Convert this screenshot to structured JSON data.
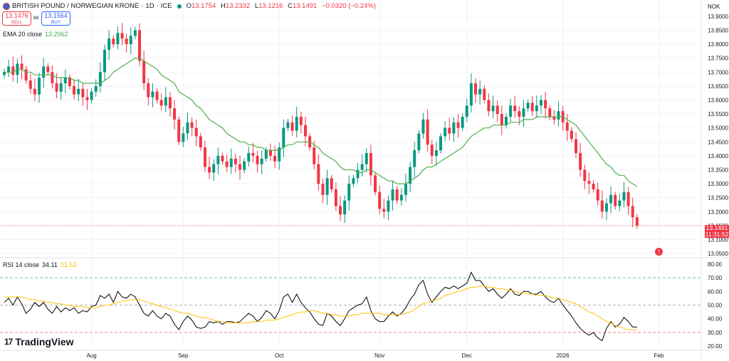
{
  "header": {
    "symbol": "BRITISH POUND / NORWEGIAN KRONE",
    "interval": "1D",
    "exchange": "ICE",
    "open_label": "O",
    "open": "13.1754",
    "high_label": "H",
    "high": "13.2332",
    "low_label": "L",
    "low": "13.1216",
    "close_label": "C",
    "close": "13.1491",
    "change": "−0.0320 (−0.24%)"
  },
  "trade": {
    "sell_price": "13.1476",
    "sell_label": "SELL",
    "spread": "88",
    "buy_price": "13.1564",
    "buy_label": "BUY"
  },
  "ema": {
    "label": "EMA 20 close",
    "value": "13.2962"
  },
  "rsi": {
    "label": "RSI 14 close",
    "value": "34.11",
    "ma_value": "31.53"
  },
  "currency": "NOK",
  "last_price": {
    "price": "13.1491",
    "countdown": "11:31:52"
  },
  "brand": "TradingView",
  "colors": {
    "up": "#089981",
    "down": "#f23645",
    "ema": "#4caf50",
    "rsi": "#000000",
    "rsi_ma": "#ffc107",
    "grid": "#f0f3fa"
  },
  "chart_data": [
    {
      "type": "candlestick",
      "y_ticks": [
        13.05,
        13.1,
        13.15,
        13.2,
        13.25,
        13.3,
        13.35,
        13.4,
        13.45,
        13.5,
        13.55,
        13.6,
        13.65,
        13.7,
        13.75,
        13.8,
        13.85,
        13.9
      ],
      "ylim": [
        13.04,
        13.92
      ],
      "x_ticks": [
        {
          "label": "Aug",
          "index": 20
        },
        {
          "label": "Sep",
          "index": 41
        },
        {
          "label": "Oct",
          "index": 63
        },
        {
          "label": "Nov",
          "index": 86
        },
        {
          "label": "Dec",
          "index": 106
        },
        {
          "label": "2026",
          "index": 128
        },
        {
          "label": "Feb",
          "index": 150
        }
      ],
      "close": [
        13.7,
        13.72,
        13.69,
        13.73,
        13.71,
        13.67,
        13.64,
        13.62,
        13.68,
        13.72,
        13.7,
        13.66,
        13.63,
        13.66,
        13.68,
        13.65,
        13.62,
        13.64,
        13.61,
        13.6,
        13.63,
        13.65,
        13.7,
        13.78,
        13.82,
        13.8,
        13.84,
        13.82,
        13.8,
        13.83,
        13.85,
        13.74,
        13.66,
        13.61,
        13.63,
        13.6,
        13.58,
        13.61,
        13.57,
        13.53,
        13.45,
        13.48,
        13.52,
        13.5,
        13.47,
        13.43,
        13.36,
        13.34,
        13.37,
        13.4,
        13.38,
        13.36,
        13.39,
        13.37,
        13.35,
        13.38,
        13.41,
        13.4,
        13.37,
        13.39,
        13.42,
        13.4,
        13.38,
        13.43,
        13.5,
        13.52,
        13.49,
        13.54,
        13.51,
        13.47,
        13.43,
        13.37,
        13.3,
        13.26,
        13.32,
        13.28,
        13.22,
        13.19,
        13.24,
        13.3,
        13.32,
        13.35,
        13.37,
        13.41,
        13.33,
        13.27,
        13.21,
        13.2,
        13.24,
        13.28,
        13.24,
        13.26,
        13.3,
        13.36,
        13.42,
        13.48,
        13.53,
        13.44,
        13.4,
        13.42,
        13.47,
        13.5,
        13.48,
        13.52,
        13.5,
        13.54,
        13.58,
        13.66,
        13.62,
        13.64,
        13.6,
        13.56,
        13.58,
        13.55,
        13.51,
        13.54,
        13.58,
        13.56,
        13.54,
        13.57,
        13.59,
        13.56,
        13.58,
        13.6,
        13.57,
        13.54,
        13.53,
        13.56,
        13.52,
        13.49,
        13.46,
        13.41,
        13.35,
        13.31,
        13.3,
        13.28,
        13.24,
        13.2,
        13.23,
        13.26,
        13.22,
        13.24,
        13.27,
        13.22,
        13.18,
        13.15
      ],
      "ema": [
        13.7,
        13.7,
        13.7,
        13.71,
        13.71,
        13.7,
        13.7,
        13.69,
        13.69,
        13.69,
        13.69,
        13.69,
        13.68,
        13.68,
        13.68,
        13.68,
        13.67,
        13.67,
        13.66,
        13.66,
        13.66,
        13.66,
        13.66,
        13.67,
        13.68,
        13.7,
        13.71,
        13.72,
        13.73,
        13.74,
        13.75,
        13.75,
        13.74,
        13.73,
        13.72,
        13.71,
        13.69,
        13.68,
        13.67,
        13.66,
        13.63,
        13.62,
        13.61,
        13.6,
        13.58,
        13.57,
        13.55,
        13.53,
        13.52,
        13.51,
        13.5,
        13.48,
        13.47,
        13.46,
        13.45,
        13.45,
        13.44,
        13.44,
        13.43,
        13.43,
        13.42,
        13.42,
        13.42,
        13.42,
        13.43,
        13.44,
        13.44,
        13.45,
        13.45,
        13.45,
        13.45,
        13.44,
        13.43,
        13.41,
        13.4,
        13.39,
        13.38,
        13.36,
        13.35,
        13.35,
        13.35,
        13.34,
        13.34,
        13.35,
        13.35,
        13.34,
        13.33,
        13.32,
        13.31,
        13.31,
        13.3,
        13.3,
        13.3,
        13.31,
        13.32,
        13.33,
        13.35,
        13.36,
        13.36,
        13.37,
        13.38,
        13.39,
        13.4,
        13.41,
        13.42,
        13.43,
        13.45,
        13.47,
        13.48,
        13.49,
        13.5,
        13.5,
        13.51,
        13.51,
        13.51,
        13.51,
        13.52,
        13.52,
        13.52,
        13.53,
        13.53,
        13.53,
        13.54,
        13.54,
        13.54,
        13.54,
        13.54,
        13.54,
        13.54,
        13.53,
        13.52,
        13.51,
        13.49,
        13.47,
        13.45,
        13.43,
        13.41,
        13.39,
        13.37,
        13.36,
        13.34,
        13.33,
        13.33,
        13.31,
        13.3,
        13.29
      ]
    },
    {
      "type": "line",
      "title": "RSI 14 close",
      "y_ticks": [
        20,
        30,
        40,
        50,
        60,
        70,
        80
      ],
      "ylim": [
        18,
        82
      ],
      "levels": [
        30,
        50,
        70
      ],
      "series": [
        {
          "name": "RSI",
          "values": [
            52,
            55,
            50,
            56,
            51,
            44,
            47,
            52,
            49,
            52,
            47,
            44,
            49,
            45,
            48,
            46,
            48,
            44,
            46,
            45,
            49,
            50,
            57,
            55,
            58,
            52,
            60,
            56,
            55,
            58,
            56,
            50,
            44,
            42,
            46,
            42,
            40,
            44,
            42,
            36,
            32,
            38,
            42,
            39,
            34,
            33,
            34,
            38,
            37,
            38,
            36,
            38,
            38,
            37,
            38,
            41,
            44,
            42,
            38,
            41,
            46,
            44,
            40,
            46,
            56,
            58,
            52,
            58,
            52,
            48,
            45,
            40,
            36,
            35,
            44,
            42,
            38,
            35,
            40,
            46,
            48,
            50,
            51,
            56,
            46,
            40,
            38,
            38,
            42,
            45,
            42,
            44,
            48,
            54,
            58,
            65,
            68,
            58,
            52,
            56,
            60,
            63,
            62,
            64,
            62,
            64,
            66,
            74,
            68,
            68,
            64,
            60,
            62,
            58,
            55,
            58,
            62,
            58,
            57,
            60,
            60,
            58,
            58,
            60,
            56,
            53,
            52,
            55,
            50,
            46,
            42,
            37,
            33,
            30,
            28,
            30,
            26,
            24,
            33,
            38,
            34,
            36,
            41,
            38,
            34,
            34
          ]
        },
        {
          "name": "RSI MA",
          "values": [
            56,
            56,
            56,
            56,
            56,
            55,
            54,
            54,
            53,
            53,
            52,
            52,
            51,
            51,
            50,
            50,
            49,
            49,
            49,
            48,
            48,
            48,
            49,
            50,
            50,
            51,
            52,
            53,
            53,
            54,
            54,
            54,
            53,
            52,
            51,
            50,
            49,
            48,
            47,
            46,
            45,
            44,
            44,
            43,
            42,
            41,
            41,
            40,
            39,
            38,
            38,
            37,
            37,
            37,
            37,
            37,
            37,
            38,
            38,
            38,
            39,
            39,
            39,
            40,
            41,
            42,
            43,
            44,
            45,
            45,
            46,
            46,
            45,
            44,
            44,
            43,
            43,
            42,
            42,
            42,
            43,
            43,
            44,
            44,
            44,
            44,
            44,
            43,
            43,
            43,
            43,
            43,
            44,
            45,
            47,
            49,
            51,
            52,
            53,
            54,
            55,
            57,
            58,
            59,
            60,
            61,
            62,
            63,
            63,
            64,
            64,
            63,
            63,
            62,
            62,
            61,
            61,
            60,
            59,
            59,
            58,
            58,
            57,
            57,
            57,
            56,
            55,
            55,
            54,
            53,
            52,
            51,
            49,
            47,
            45,
            44,
            42,
            40,
            38,
            37,
            35,
            34,
            33,
            32,
            32,
            32
          ]
        }
      ]
    }
  ]
}
